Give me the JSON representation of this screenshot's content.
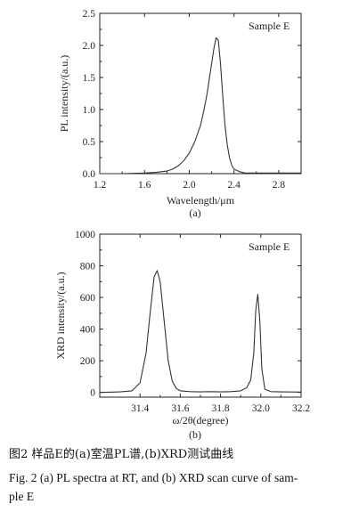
{
  "chart_data": [
    {
      "type": "line",
      "panel_label": "(a)",
      "annotation": "Sample  E",
      "xlabel": "Wavelength/μm",
      "ylabel": "PL intensity/(a.u.)",
      "xlim": [
        1.2,
        3.0
      ],
      "ylim": [
        0,
        2.5
      ],
      "xticks": [
        "1.2",
        "1.6",
        "2.0",
        "2.4",
        "2.8"
      ],
      "xtick_values": [
        1.2,
        1.6,
        2.0,
        2.4,
        2.8
      ],
      "yticks": [
        "0.0",
        "0.5",
        "1.0",
        "1.5",
        "2.0",
        "2.5"
      ],
      "ytick_values": [
        0,
        0.5,
        1.0,
        1.5,
        2.0,
        2.5
      ],
      "grid": false,
      "x": [
        1.2,
        1.4,
        1.6,
        1.7,
        1.8,
        1.85,
        1.9,
        1.95,
        2.0,
        2.05,
        2.1,
        2.13,
        2.16,
        2.19,
        2.22,
        2.24,
        2.26,
        2.28,
        2.3,
        2.32,
        2.34,
        2.36,
        2.38,
        2.4,
        2.45,
        2.5,
        2.6,
        2.8,
        3.0
      ],
      "y": [
        0.0,
        0.0,
        0.01,
        0.02,
        0.04,
        0.07,
        0.12,
        0.2,
        0.32,
        0.5,
        0.75,
        0.98,
        1.25,
        1.6,
        1.95,
        2.12,
        2.08,
        1.7,
        1.2,
        0.75,
        0.45,
        0.25,
        0.13,
        0.07,
        0.03,
        0.01,
        0.01,
        0.01,
        0.01
      ]
    },
    {
      "type": "line",
      "panel_label": "(b)",
      "annotation": "Sample  E",
      "xlabel": "ω/2θ(degree)",
      "ylabel": "XRD intensity/(a.u.)",
      "xlim": [
        31.2,
        32.2
      ],
      "ylim": [
        -30,
        1000
      ],
      "xticks": [
        "31.4",
        "31.6",
        "31.8",
        "32.0",
        "32.2"
      ],
      "xtick_values": [
        31.4,
        31.6,
        31.8,
        32.0,
        32.2
      ],
      "yticks": [
        "0",
        "200",
        "400",
        "600",
        "800",
        "1000"
      ],
      "ytick_values": [
        0,
        200,
        400,
        600,
        800,
        1000
      ],
      "grid": false,
      "x": [
        31.2,
        31.3,
        31.36,
        31.4,
        31.43,
        31.45,
        31.47,
        31.485,
        31.5,
        31.52,
        31.54,
        31.56,
        31.58,
        31.6,
        31.65,
        31.7,
        31.75,
        31.8,
        31.85,
        31.9,
        31.93,
        31.95,
        31.965,
        31.975,
        31.985,
        31.995,
        32.005,
        32.02,
        32.05,
        32.1,
        32.2
      ],
      "y": [
        0,
        3,
        10,
        60,
        250,
        500,
        730,
        770,
        700,
        450,
        200,
        70,
        25,
        10,
        5,
        3,
        5,
        3,
        5,
        10,
        30,
        80,
        250,
        520,
        620,
        450,
        150,
        20,
        5,
        3,
        2
      ]
    }
  ],
  "captions": {
    "zh": "图2   样品E的(a)室温PL谱,(b)XRD测试曲线",
    "en_line1": "Fig. 2   (a) PL spectra at RT, and (b) XRD scan curve of sam-",
    "en_line2": "ple E"
  }
}
